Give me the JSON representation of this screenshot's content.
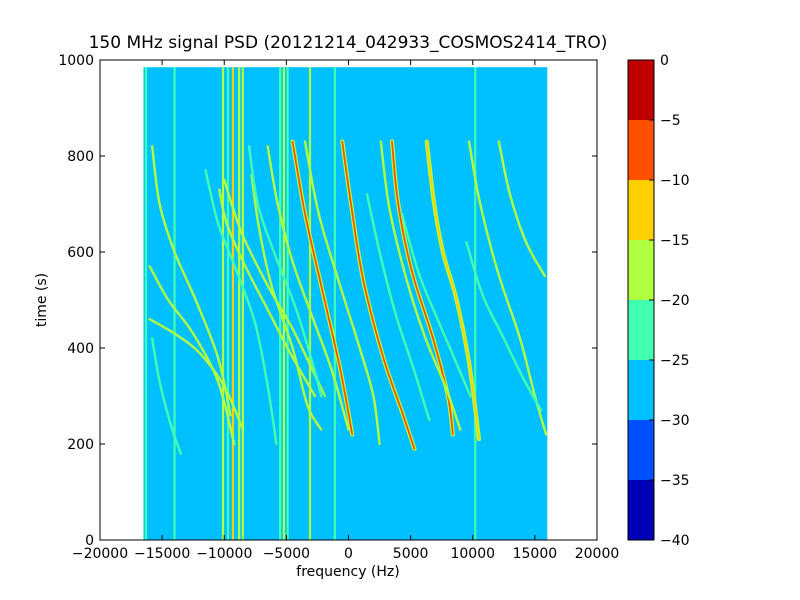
{
  "chart_data": {
    "type": "heatmap",
    "title": "150 MHz signal PSD (20121214_042933_COSMOS2414_TRO)",
    "xlabel": "frequency (Hz)",
    "ylabel": "time (s)",
    "xlim": [
      -20000,
      20000
    ],
    "ylim": [
      0,
      1000
    ],
    "x_ticks": [
      -20000,
      -15000,
      -10000,
      -5000,
      0,
      5000,
      10000,
      15000,
      20000
    ],
    "x_tick_labels": [
      "−20000",
      "−15000",
      "−10000",
      "−5000",
      "0",
      "5000",
      "10000",
      "15000",
      "20000"
    ],
    "y_ticks": [
      0,
      200,
      400,
      600,
      800,
      1000
    ],
    "y_tick_labels": [
      "0",
      "200",
      "400",
      "600",
      "800",
      "1000"
    ],
    "data_extent": {
      "x": [
        -16500,
        16000
      ],
      "y": [
        0,
        985
      ]
    },
    "background_level": -27.5,
    "colorbar": {
      "levels": [
        -40,
        -35,
        -30,
        -25,
        -20,
        -15,
        -10,
        -5,
        0
      ],
      "tick_labels": [
        "−40",
        "−35",
        "−30",
        "−25",
        "−20",
        "−15",
        "−10",
        "−5",
        "0"
      ],
      "colors": [
        "#0000b8",
        "#0050ff",
        "#00c0ff",
        "#40ffb0",
        "#b0ff40",
        "#ffd000",
        "#ff5000",
        "#c00000"
      ]
    },
    "vertical_lines": [
      {
        "x": -16300,
        "level": -22
      },
      {
        "x": -14000,
        "level": -22
      },
      {
        "x": -10100,
        "level": -18
      },
      {
        "x": -9700,
        "level": -22
      },
      {
        "x": -9300,
        "level": -13
      },
      {
        "x": -8800,
        "level": -18
      },
      {
        "x": -8500,
        "level": -18
      },
      {
        "x": -5500,
        "level": -22
      },
      {
        "x": -5200,
        "level": -18
      },
      {
        "x": -4900,
        "level": -22
      },
      {
        "x": -3100,
        "level": -18
      },
      {
        "x": -1100,
        "level": -22
      },
      {
        "x": 10200,
        "level": -22
      }
    ],
    "traces": [
      {
        "level": -8,
        "points": [
          [
            -4500,
            830
          ],
          [
            -3500,
            680
          ],
          [
            -2200,
            530
          ],
          [
            -700,
            360
          ],
          [
            300,
            220
          ]
        ]
      },
      {
        "level": -8,
        "points": [
          [
            -500,
            830
          ],
          [
            200,
            700
          ],
          [
            1200,
            540
          ],
          [
            2800,
            380
          ],
          [
            4400,
            260
          ],
          [
            5300,
            190
          ]
        ]
      },
      {
        "level": -8,
        "points": [
          [
            3500,
            830
          ],
          [
            4000,
            700
          ],
          [
            5100,
            560
          ],
          [
            6800,
            420
          ],
          [
            8000,
            300
          ],
          [
            8400,
            220
          ]
        ]
      },
      {
        "level": -13,
        "points": [
          [
            6300,
            830
          ],
          [
            6900,
            700
          ],
          [
            7600,
            600
          ],
          [
            8700,
            500
          ],
          [
            9700,
            370
          ],
          [
            10500,
            210
          ]
        ]
      },
      {
        "level": -18,
        "points": [
          [
            2600,
            830
          ],
          [
            3300,
            690
          ],
          [
            4700,
            540
          ],
          [
            6200,
            420
          ],
          [
            7800,
            320
          ],
          [
            9000,
            230
          ]
        ]
      },
      {
        "level": -18,
        "points": [
          [
            -6500,
            820
          ],
          [
            -5700,
            700
          ],
          [
            -4500,
            580
          ],
          [
            -2700,
            450
          ],
          [
            -1300,
            350
          ],
          [
            0,
            230
          ]
        ]
      },
      {
        "level": -18,
        "points": [
          [
            -3500,
            830
          ],
          [
            -2400,
            680
          ],
          [
            -800,
            540
          ],
          [
            900,
            400
          ],
          [
            2000,
            300
          ],
          [
            2500,
            200
          ]
        ]
      },
      {
        "level": -18,
        "points": [
          [
            9700,
            830
          ],
          [
            10600,
            700
          ],
          [
            12000,
            560
          ],
          [
            13800,
            420
          ],
          [
            15000,
            300
          ],
          [
            15900,
            220
          ]
        ]
      },
      {
        "level": -18,
        "points": [
          [
            12100,
            830
          ],
          [
            13000,
            720
          ],
          [
            14300,
            620
          ],
          [
            15800,
            550
          ]
        ]
      },
      {
        "level": -18,
        "points": [
          [
            -16000,
            570
          ],
          [
            -14500,
            500
          ],
          [
            -12500,
            430
          ],
          [
            -10500,
            330
          ],
          [
            -9200,
            200
          ]
        ]
      },
      {
        "level": -18,
        "points": [
          [
            -16000,
            460
          ],
          [
            -14000,
            430
          ],
          [
            -12000,
            390
          ],
          [
            -10000,
            320
          ],
          [
            -8500,
            230
          ]
        ]
      },
      {
        "level": -18,
        "points": [
          [
            -15800,
            820
          ],
          [
            -15200,
            700
          ],
          [
            -14000,
            600
          ],
          [
            -12300,
            500
          ],
          [
            -10500,
            380
          ],
          [
            -9500,
            260
          ]
        ]
      },
      {
        "level": -18,
        "points": [
          [
            -10400,
            730
          ],
          [
            -9800,
            660
          ],
          [
            -8300,
            570
          ],
          [
            -6500,
            480
          ],
          [
            -4700,
            390
          ],
          [
            -2700,
            300
          ]
        ]
      },
      {
        "level": -18,
        "points": [
          [
            -10000,
            750
          ],
          [
            -8600,
            640
          ],
          [
            -6500,
            530
          ],
          [
            -4500,
            440
          ],
          [
            -3000,
            360
          ],
          [
            -1900,
            300
          ]
        ]
      },
      {
        "level": -18,
        "points": [
          [
            -7800,
            760
          ],
          [
            -7200,
            650
          ],
          [
            -6200,
            530
          ],
          [
            -4500,
            400
          ],
          [
            -3300,
            280
          ],
          [
            -2200,
            230
          ]
        ]
      },
      {
        "level": -22,
        "points": [
          [
            -8000,
            820
          ],
          [
            -7300,
            700
          ],
          [
            -6000,
            600
          ],
          [
            -4200,
            480
          ],
          [
            -2800,
            360
          ],
          [
            -2200,
            300
          ]
        ]
      },
      {
        "level": -22,
        "points": [
          [
            -11500,
            770
          ],
          [
            -10500,
            660
          ],
          [
            -9000,
            560
          ],
          [
            -7500,
            450
          ],
          [
            -6500,
            320
          ],
          [
            -5800,
            200
          ]
        ]
      },
      {
        "level": -22,
        "points": [
          [
            1500,
            720
          ],
          [
            2500,
            600
          ],
          [
            3800,
            470
          ],
          [
            5200,
            360
          ],
          [
            6500,
            250
          ]
        ]
      },
      {
        "level": -22,
        "points": [
          [
            9500,
            620
          ],
          [
            10800,
            510
          ],
          [
            12500,
            420
          ],
          [
            14000,
            340
          ],
          [
            15500,
            270
          ]
        ]
      },
      {
        "level": -22,
        "points": [
          [
            -15800,
            420
          ],
          [
            -15200,
            330
          ],
          [
            -14300,
            240
          ],
          [
            -13500,
            180
          ]
        ]
      },
      {
        "level": -22,
        "points": [
          [
            4300,
            680
          ],
          [
            5600,
            560
          ],
          [
            7000,
            470
          ],
          [
            8500,
            380
          ],
          [
            9800,
            300
          ]
        ]
      }
    ]
  }
}
